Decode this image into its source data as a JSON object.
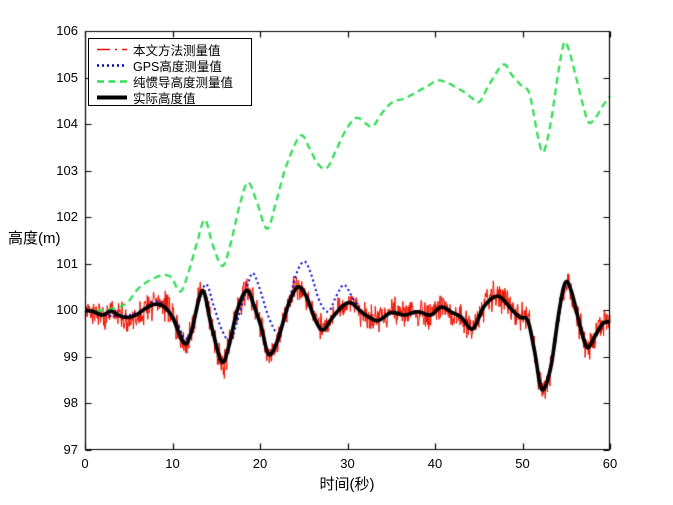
{
  "chart_data": {
    "type": "line",
    "title": "",
    "xlabel": "时间(秒)",
    "ylabel": "高度(m)",
    "xlim": [
      0,
      60
    ],
    "ylim": [
      97,
      106
    ],
    "x_ticks": [
      0,
      10,
      20,
      30,
      40,
      50,
      60
    ],
    "y_ticks": [
      97,
      98,
      99,
      100,
      101,
      102,
      103,
      104,
      105,
      106
    ],
    "grid": false,
    "legend_position": "top-left",
    "axis_color": "#000000",
    "series": [
      {
        "name": "本文方法测量值",
        "color": "#ee1100",
        "style": "noisy",
        "legend_style": "dashdot",
        "line_width": 1,
        "legend_line_width": 1.4,
        "base": "实际高度值",
        "noise_amplitude": 0.38,
        "noise_seed": 17
      },
      {
        "name": "GPS高度测量值",
        "color": "#0000cc",
        "style": "dotted",
        "legend_style": "dotted",
        "line_width": 2,
        "legend_line_width": 2.4,
        "points": [
          [
            0,
            100.0
          ],
          [
            2,
            99.9
          ],
          [
            4,
            99.88
          ],
          [
            6,
            99.95
          ],
          [
            7.5,
            100.15
          ],
          [
            8.5,
            100.18
          ],
          [
            9.5,
            100.0
          ],
          [
            10.5,
            99.75
          ],
          [
            11.4,
            99.4
          ],
          [
            12.2,
            99.6
          ],
          [
            13.7,
            100.55
          ],
          [
            14.7,
            100.1
          ],
          [
            15.6,
            99.6
          ],
          [
            16.6,
            99.35
          ],
          [
            17.6,
            99.9
          ],
          [
            18.6,
            100.55
          ],
          [
            19.2,
            100.8
          ],
          [
            20,
            100.45
          ],
          [
            21,
            99.85
          ],
          [
            22.1,
            99.5
          ],
          [
            23,
            99.9
          ],
          [
            24,
            100.7
          ],
          [
            25,
            101.05
          ],
          [
            25.8,
            100.8
          ],
          [
            26.8,
            100.2
          ],
          [
            27.8,
            99.97
          ],
          [
            28.7,
            100.3
          ],
          [
            29.6,
            100.55
          ],
          [
            30.5,
            100.3
          ],
          [
            31.5,
            100.0
          ],
          [
            32.5,
            99.85
          ],
          [
            33.5,
            99.78
          ],
          [
            35,
            99.95
          ],
          [
            36.5,
            99.9
          ],
          [
            38,
            99.97
          ],
          [
            39.5,
            99.9
          ],
          [
            40.7,
            100.07
          ],
          [
            42,
            99.95
          ],
          [
            43,
            99.85
          ],
          [
            44.3,
            99.6
          ],
          [
            45.5,
            100.05
          ],
          [
            46.6,
            100.27
          ],
          [
            47.5,
            100.28
          ],
          [
            48.6,
            100.05
          ],
          [
            49.7,
            99.85
          ],
          [
            50.6,
            99.78
          ],
          [
            51.4,
            99.1
          ],
          [
            52.2,
            98.3
          ],
          [
            53.2,
            98.75
          ],
          [
            54.2,
            100.0
          ],
          [
            54.9,
            100.6
          ],
          [
            55.6,
            100.4
          ],
          [
            56.6,
            99.65
          ],
          [
            57.4,
            99.2
          ],
          [
            58.3,
            99.45
          ],
          [
            59.2,
            99.72
          ],
          [
            60,
            99.75
          ]
        ]
      },
      {
        "name": "纯惯导高度测量值",
        "color": "#33dd55",
        "style": "dashed",
        "legend_style": "dashed",
        "line_width": 2.3,
        "legend_line_width": 2.4,
        "points": [
          [
            0,
            100.0
          ],
          [
            2,
            100.0
          ],
          [
            4,
            100.08
          ],
          [
            5,
            100.2
          ],
          [
            6,
            100.45
          ],
          [
            7,
            100.6
          ],
          [
            8,
            100.7
          ],
          [
            9,
            100.76
          ],
          [
            9.9,
            100.7
          ],
          [
            10.9,
            100.4
          ],
          [
            11.8,
            100.8
          ],
          [
            12.8,
            101.45
          ],
          [
            13.7,
            101.95
          ],
          [
            14.6,
            101.4
          ],
          [
            15.7,
            100.95
          ],
          [
            16.6,
            101.4
          ],
          [
            17.6,
            102.2
          ],
          [
            18.6,
            102.75
          ],
          [
            19.6,
            102.35
          ],
          [
            20.8,
            101.75
          ],
          [
            21.8,
            102.3
          ],
          [
            23,
            103.1
          ],
          [
            24.6,
            103.75
          ],
          [
            25.6,
            103.5
          ],
          [
            26.6,
            103.15
          ],
          [
            27.6,
            103.05
          ],
          [
            28.6,
            103.4
          ],
          [
            29.6,
            103.8
          ],
          [
            30.6,
            104.08
          ],
          [
            31.3,
            104.13
          ],
          [
            32.2,
            104.0
          ],
          [
            32.9,
            103.95
          ],
          [
            34,
            104.25
          ],
          [
            35.2,
            104.48
          ],
          [
            36.5,
            104.55
          ],
          [
            38,
            104.7
          ],
          [
            39.2,
            104.82
          ],
          [
            40.3,
            104.94
          ],
          [
            41.5,
            104.88
          ],
          [
            42.5,
            104.78
          ],
          [
            43.4,
            104.68
          ],
          [
            44.3,
            104.55
          ],
          [
            45.1,
            104.48
          ],
          [
            46.2,
            104.85
          ],
          [
            47.8,
            105.28
          ],
          [
            48.8,
            105.05
          ],
          [
            50,
            104.8
          ],
          [
            50.8,
            104.65
          ],
          [
            51.8,
            103.7
          ],
          [
            52.4,
            103.4
          ],
          [
            53.2,
            104.0
          ],
          [
            54,
            105.0
          ],
          [
            54.7,
            105.72
          ],
          [
            55.2,
            105.65
          ],
          [
            56,
            105.1
          ],
          [
            57,
            104.35
          ],
          [
            57.6,
            104.03
          ],
          [
            58.4,
            104.15
          ],
          [
            59.2,
            104.4
          ],
          [
            60,
            104.6
          ]
        ]
      },
      {
        "name": "实际高度值",
        "color": "#000000",
        "style": "solid",
        "legend_style": "solid",
        "line_width": 3.7,
        "legend_line_width": 4,
        "points": [
          [
            0,
            100.0
          ],
          [
            1,
            99.97
          ],
          [
            2,
            99.9
          ],
          [
            3,
            99.98
          ],
          [
            4,
            99.88
          ],
          [
            5,
            99.85
          ],
          [
            6,
            99.92
          ],
          [
            7,
            100.05
          ],
          [
            8,
            100.13
          ],
          [
            9,
            100.08
          ],
          [
            10,
            99.85
          ],
          [
            11.3,
            99.3
          ],
          [
            12.1,
            99.5
          ],
          [
            13.4,
            100.42
          ],
          [
            14.4,
            99.7
          ],
          [
            15.6,
            98.9
          ],
          [
            16.4,
            99.2
          ],
          [
            17.4,
            100.0
          ],
          [
            18.5,
            100.43
          ],
          [
            19.4,
            100.05
          ],
          [
            20.2,
            99.6
          ],
          [
            21,
            99.05
          ],
          [
            22,
            99.35
          ],
          [
            23.2,
            100.1
          ],
          [
            24.3,
            100.5
          ],
          [
            25.3,
            100.3
          ],
          [
            26.3,
            99.8
          ],
          [
            27.2,
            99.58
          ],
          [
            28.3,
            99.85
          ],
          [
            29.5,
            100.1
          ],
          [
            30.4,
            100.16
          ],
          [
            31.5,
            99.98
          ],
          [
            32.5,
            99.85
          ],
          [
            33.5,
            99.78
          ],
          [
            35,
            99.95
          ],
          [
            36.5,
            99.9
          ],
          [
            38,
            99.97
          ],
          [
            39.5,
            99.9
          ],
          [
            40.7,
            100.07
          ],
          [
            42,
            99.95
          ],
          [
            43,
            99.85
          ],
          [
            44.3,
            99.6
          ],
          [
            45.5,
            100.05
          ],
          [
            46.6,
            100.27
          ],
          [
            47.5,
            100.28
          ],
          [
            48.6,
            100.05
          ],
          [
            49.7,
            99.85
          ],
          [
            50.6,
            99.78
          ],
          [
            51.4,
            99.1
          ],
          [
            52.2,
            98.3
          ],
          [
            53.2,
            98.75
          ],
          [
            54.2,
            100.0
          ],
          [
            54.9,
            100.6
          ],
          [
            55.6,
            100.4
          ],
          [
            56.6,
            99.65
          ],
          [
            57.4,
            99.2
          ],
          [
            58.3,
            99.45
          ],
          [
            59.2,
            99.72
          ],
          [
            60,
            99.75
          ]
        ]
      }
    ]
  }
}
